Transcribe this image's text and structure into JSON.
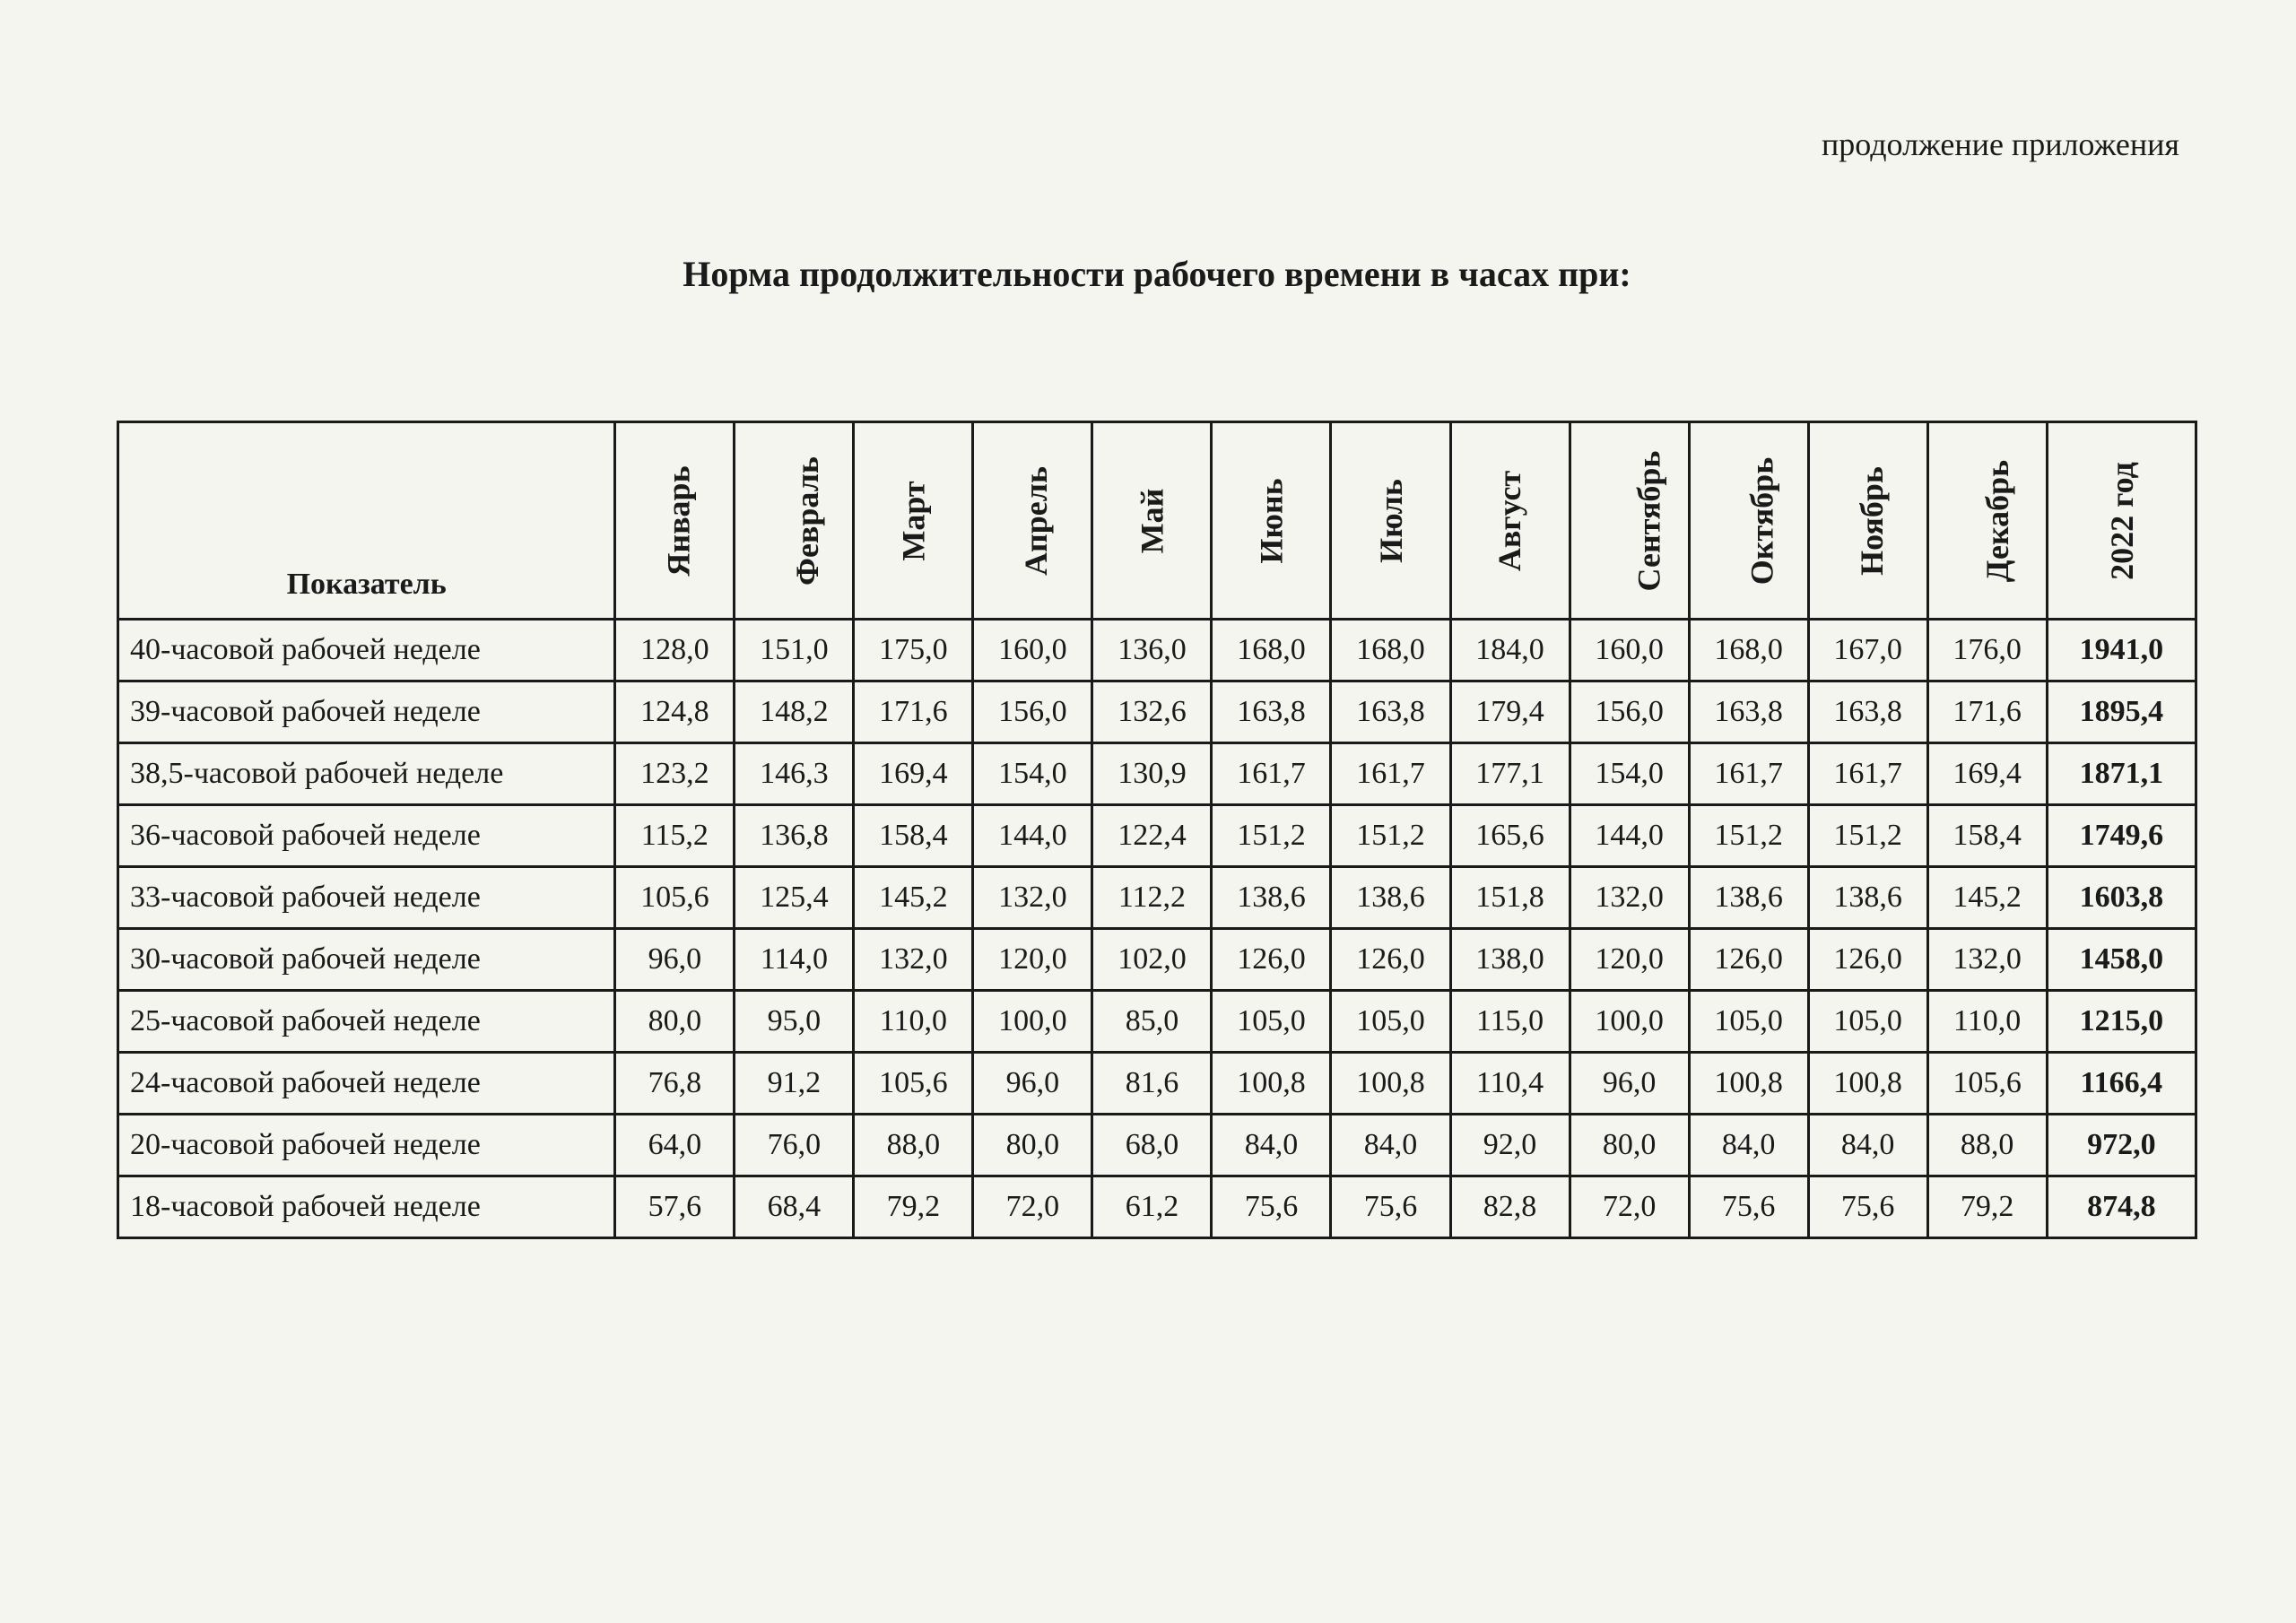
{
  "header_note": "продолжение приложения",
  "title": "Норма продолжительности рабочего времени в часах при:",
  "indicator_label": "Показатель",
  "total_header": "2022 год",
  "months": [
    "Январь",
    "Февраль",
    "Март",
    "Апрель",
    "Май",
    "Июнь",
    "Июль",
    "Август",
    "Сентябрь",
    "Октябрь",
    "Ноябрь",
    "Декабрь"
  ],
  "rows": [
    {
      "label": "40-часовой рабочей неделе",
      "values": [
        "128,0",
        "151,0",
        "175,0",
        "160,0",
        "136,0",
        "168,0",
        "168,0",
        "184,0",
        "160,0",
        "168,0",
        "167,0",
        "176,0"
      ],
      "total": "1941,0"
    },
    {
      "label": "39-часовой рабочей неделе",
      "values": [
        "124,8",
        "148,2",
        "171,6",
        "156,0",
        "132,6",
        "163,8",
        "163,8",
        "179,4",
        "156,0",
        "163,8",
        "163,8",
        "171,6"
      ],
      "total": "1895,4"
    },
    {
      "label": "38,5-часовой рабочей неделе",
      "values": [
        "123,2",
        "146,3",
        "169,4",
        "154,0",
        "130,9",
        "161,7",
        "161,7",
        "177,1",
        "154,0",
        "161,7",
        "161,7",
        "169,4"
      ],
      "total": "1871,1"
    },
    {
      "label": "36-часовой рабочей неделе",
      "values": [
        "115,2",
        "136,8",
        "158,4",
        "144,0",
        "122,4",
        "151,2",
        "151,2",
        "165,6",
        "144,0",
        "151,2",
        "151,2",
        "158,4"
      ],
      "total": "1749,6"
    },
    {
      "label": "33-часовой рабочей неделе",
      "values": [
        "105,6",
        "125,4",
        "145,2",
        "132,0",
        "112,2",
        "138,6",
        "138,6",
        "151,8",
        "132,0",
        "138,6",
        "138,6",
        "145,2"
      ],
      "total": "1603,8"
    },
    {
      "label": "30-часовой рабочей неделе",
      "values": [
        "96,0",
        "114,0",
        "132,0",
        "120,0",
        "102,0",
        "126,0",
        "126,0",
        "138,0",
        "120,0",
        "126,0",
        "126,0",
        "132,0"
      ],
      "total": "1458,0"
    },
    {
      "label": "25-часовой рабочей неделе",
      "values": [
        "80,0",
        "95,0",
        "110,0",
        "100,0",
        "85,0",
        "105,0",
        "105,0",
        "115,0",
        "100,0",
        "105,0",
        "105,0",
        "110,0"
      ],
      "total": "1215,0"
    },
    {
      "label": "24-часовой рабочей неделе",
      "values": [
        "76,8",
        "91,2",
        "105,6",
        "96,0",
        "81,6",
        "100,8",
        "100,8",
        "110,4",
        "96,0",
        "100,8",
        "100,8",
        "105,6"
      ],
      "total": "1166,4"
    },
    {
      "label": "20-часовой рабочей неделе",
      "values": [
        "64,0",
        "76,0",
        "88,0",
        "80,0",
        "68,0",
        "84,0",
        "84,0",
        "92,0",
        "80,0",
        "84,0",
        "84,0",
        "88,0"
      ],
      "total": "972,0"
    },
    {
      "label": "18-часовой рабочей неделе",
      "values": [
        "57,6",
        "68,4",
        "79,2",
        "72,0",
        "61,2",
        "75,6",
        "75,6",
        "82,8",
        "72,0",
        "75,6",
        "75,6",
        "79,2"
      ],
      "total": "874,8"
    }
  ]
}
